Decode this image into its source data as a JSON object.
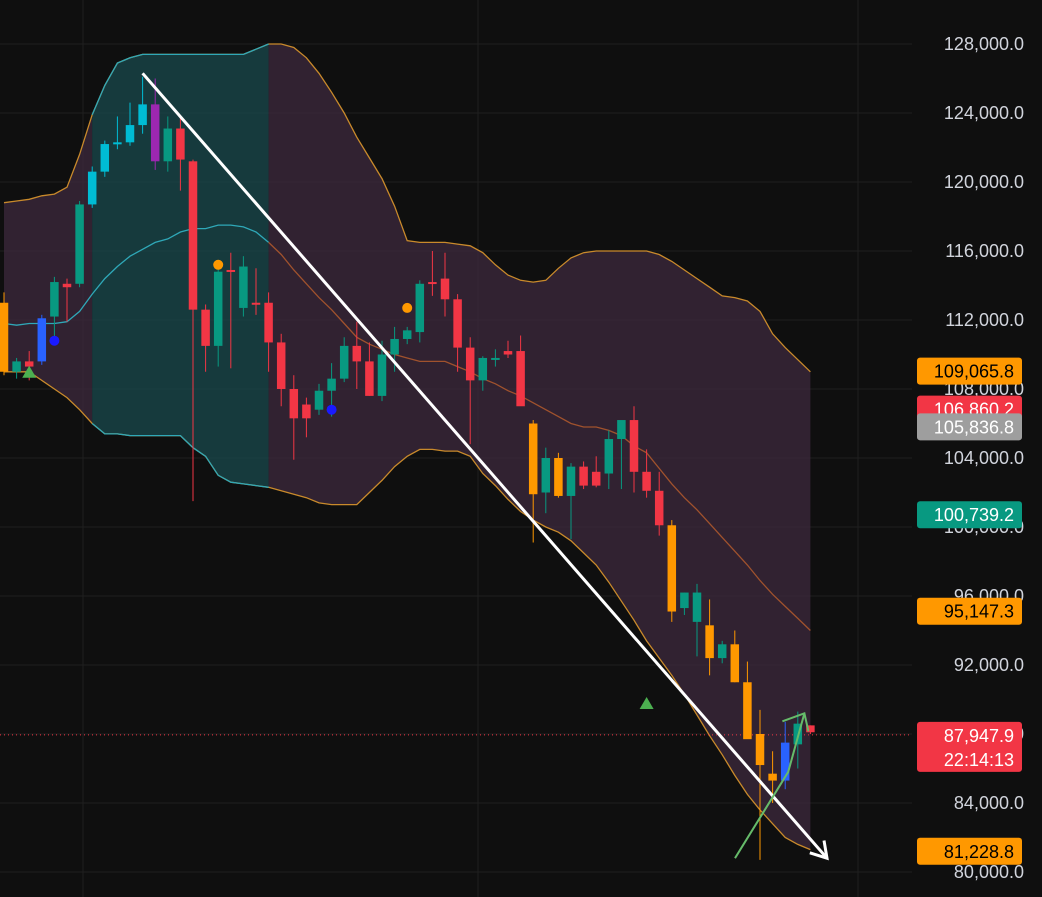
{
  "chart_data": {
    "type": "candlestick",
    "title": "",
    "xlabel": "",
    "ylabel": "",
    "ylim": [
      79500,
      130500
    ],
    "grid": true,
    "y_ticks": [
      {
        "value": 128000,
        "label": "128,000.0"
      },
      {
        "value": 124000,
        "label": "124,000.0"
      },
      {
        "value": 120000,
        "label": "120,000.0"
      },
      {
        "value": 116000,
        "label": "116,000.0"
      },
      {
        "value": 112000,
        "label": "112,000.0"
      },
      {
        "value": 108000,
        "label": "108,000.0"
      },
      {
        "value": 104000,
        "label": "104,000.0"
      },
      {
        "value": 100000,
        "label": "100,000.0"
      },
      {
        "value": 96000,
        "label": "96,000.0"
      },
      {
        "value": 92000,
        "label": "92,000.0"
      },
      {
        "value": 88000,
        "label": "88,000.0"
      },
      {
        "value": 84000,
        "label": "84,000.0"
      },
      {
        "value": 80000,
        "label": "80,000.0"
      }
    ],
    "candles": [
      {
        "o": 113000,
        "h": 113600,
        "l": 108800,
        "c": 109000,
        "color": "#ff9800"
      },
      {
        "o": 109000,
        "h": 109800,
        "l": 108600,
        "c": 109600,
        "color": "#089981"
      },
      {
        "o": 109600,
        "h": 110200,
        "l": 108500,
        "c": 109300,
        "color": "#f23645"
      },
      {
        "o": 109600,
        "h": 112300,
        "l": 109400,
        "c": 112100,
        "color": "#2962ff"
      },
      {
        "o": 112200,
        "h": 114500,
        "l": 111000,
        "c": 114200,
        "color": "#089981"
      },
      {
        "o": 113900,
        "h": 114400,
        "l": 111900,
        "c": 114100,
        "color": "#f23645"
      },
      {
        "o": 114100,
        "h": 118900,
        "l": 113900,
        "c": 118700,
        "color": "#089981"
      },
      {
        "o": 118700,
        "h": 120900,
        "l": 118500,
        "c": 120600,
        "color": "#00bcd4"
      },
      {
        "o": 120600,
        "h": 122400,
        "l": 120300,
        "c": 122200,
        "color": "#00bcd4"
      },
      {
        "o": 122200,
        "h": 123800,
        "l": 121900,
        "c": 122300,
        "color": "#00bcd4"
      },
      {
        "o": 122300,
        "h": 124600,
        "l": 122100,
        "c": 123300,
        "color": "#00bcd4"
      },
      {
        "o": 123300,
        "h": 126100,
        "l": 122800,
        "c": 124500,
        "color": "#00bcd4"
      },
      {
        "o": 124500,
        "h": 126000,
        "l": 120700,
        "c": 121200,
        "color": "#9c27b0"
      },
      {
        "o": 121200,
        "h": 123800,
        "l": 120600,
        "c": 123100,
        "color": "#089981"
      },
      {
        "o": 123100,
        "h": 123700,
        "l": 119500,
        "c": 121300,
        "color": "#f23645"
      },
      {
        "o": 121200,
        "h": 121300,
        "l": 101500,
        "c": 112600,
        "color": "#f23645"
      },
      {
        "o": 112600,
        "h": 112900,
        "l": 109000,
        "c": 110500,
        "color": "#f23645"
      },
      {
        "o": 110500,
        "h": 115400,
        "l": 109300,
        "c": 114800,
        "color": "#089981"
      },
      {
        "o": 114800,
        "h": 115900,
        "l": 109200,
        "c": 114900,
        "color": "#f23645"
      },
      {
        "o": 112700,
        "h": 115700,
        "l": 112200,
        "c": 115100,
        "color": "#089981"
      },
      {
        "o": 113000,
        "h": 115000,
        "l": 112300,
        "c": 113000,
        "color": "#f23645"
      },
      {
        "o": 113000,
        "h": 113600,
        "l": 109000,
        "c": 110700,
        "color": "#f23645"
      },
      {
        "o": 110700,
        "h": 111200,
        "l": 107000,
        "c": 108000,
        "color": "#f23645"
      },
      {
        "o": 108000,
        "h": 108800,
        "l": 103900,
        "c": 106300,
        "color": "#f23645"
      },
      {
        "o": 106300,
        "h": 107500,
        "l": 105200,
        "c": 107100,
        "color": "#f23645"
      },
      {
        "o": 106800,
        "h": 108300,
        "l": 106500,
        "c": 107900,
        "color": "#089981"
      },
      {
        "o": 107900,
        "h": 109500,
        "l": 106400,
        "c": 108600,
        "color": "#089981"
      },
      {
        "o": 108600,
        "h": 111000,
        "l": 108400,
        "c": 110500,
        "color": "#089981"
      },
      {
        "o": 110500,
        "h": 111900,
        "l": 108000,
        "c": 109600,
        "color": "#f23645"
      },
      {
        "o": 109600,
        "h": 110700,
        "l": 107600,
        "c": 107600,
        "color": "#f23645"
      },
      {
        "o": 107600,
        "h": 110800,
        "l": 107300,
        "c": 110000,
        "color": "#089981"
      },
      {
        "o": 110000,
        "h": 111600,
        "l": 109000,
        "c": 110900,
        "color": "#089981"
      },
      {
        "o": 110900,
        "h": 111600,
        "l": 110600,
        "c": 111400,
        "color": "#089981"
      },
      {
        "o": 111300,
        "h": 114300,
        "l": 110700,
        "c": 114100,
        "color": "#089981"
      },
      {
        "o": 114100,
        "h": 116000,
        "l": 113400,
        "c": 114200,
        "color": "#f23645"
      },
      {
        "o": 114400,
        "h": 115900,
        "l": 112200,
        "c": 113200,
        "color": "#f23645"
      },
      {
        "o": 113200,
        "h": 113500,
        "l": 109000,
        "c": 110400,
        "color": "#f23645"
      },
      {
        "o": 110400,
        "h": 111000,
        "l": 104800,
        "c": 108500,
        "color": "#f23645"
      },
      {
        "o": 108500,
        "h": 109900,
        "l": 107900,
        "c": 109800,
        "color": "#089981"
      },
      {
        "o": 109800,
        "h": 110300,
        "l": 109300,
        "c": 109800,
        "color": "#089981"
      },
      {
        "o": 110000,
        "h": 110800,
        "l": 109800,
        "c": 110200,
        "color": "#f23645"
      },
      {
        "o": 110200,
        "h": 111100,
        "l": 107200,
        "c": 107000,
        "color": "#f23645"
      },
      {
        "o": 106000,
        "h": 106200,
        "l": 99100,
        "c": 101900,
        "color": "#ff9800"
      },
      {
        "o": 102000,
        "h": 104600,
        "l": 100800,
        "c": 104000,
        "color": "#089981"
      },
      {
        "o": 104000,
        "h": 104300,
        "l": 101700,
        "c": 101800,
        "color": "#ff9800"
      },
      {
        "o": 101800,
        "h": 103700,
        "l": 99300,
        "c": 103500,
        "color": "#089981"
      },
      {
        "o": 103500,
        "h": 103800,
        "l": 102200,
        "c": 102400,
        "color": "#f23645"
      },
      {
        "o": 102400,
        "h": 104100,
        "l": 102300,
        "c": 103200,
        "color": "#f23645"
      },
      {
        "o": 103100,
        "h": 105600,
        "l": 102200,
        "c": 105100,
        "color": "#089981"
      },
      {
        "o": 105100,
        "h": 105800,
        "l": 102200,
        "c": 106200,
        "color": "#089981"
      },
      {
        "o": 106200,
        "h": 107000,
        "l": 102000,
        "c": 103200,
        "color": "#f23645"
      },
      {
        "o": 103200,
        "h": 104500,
        "l": 101700,
        "c": 102100,
        "color": "#f23645"
      },
      {
        "o": 102100,
        "h": 103200,
        "l": 99500,
        "c": 100100,
        "color": "#f23645"
      },
      {
        "o": 100100,
        "h": 100400,
        "l": 94500,
        "c": 95100,
        "color": "#ff9800"
      },
      {
        "o": 95300,
        "h": 96200,
        "l": 94900,
        "c": 96200,
        "color": "#089981"
      },
      {
        "o": 96200,
        "h": 96700,
        "l": 92500,
        "c": 94500,
        "color": "#089981"
      },
      {
        "o": 94300,
        "h": 95800,
        "l": 91400,
        "c": 92400,
        "color": "#ff9800"
      },
      {
        "o": 92400,
        "h": 93400,
        "l": 92100,
        "c": 93200,
        "color": "#089981"
      },
      {
        "o": 93200,
        "h": 94000,
        "l": 91000,
        "c": 91000,
        "color": "#ff9800"
      },
      {
        "o": 91000,
        "h": 92200,
        "l": 88000,
        "c": 87700,
        "color": "#ff9800"
      },
      {
        "o": 88000,
        "h": 89400,
        "l": 80700,
        "c": 86200,
        "color": "#ff9800"
      },
      {
        "o": 85700,
        "h": 87000,
        "l": 84000,
        "c": 85300,
        "color": "#ff9800"
      },
      {
        "o": 85300,
        "h": 88700,
        "l": 84800,
        "c": 87500,
        "color": "#2962ff"
      },
      {
        "o": 87400,
        "h": 89300,
        "l": 86000,
        "c": 88600,
        "color": "#089981"
      },
      {
        "o": 88500,
        "h": 88500,
        "l": 88000,
        "c": 88100,
        "color": "#f23645"
      }
    ],
    "bands": {
      "upper": [
        118800,
        118900,
        119000,
        119200,
        119300,
        119700,
        121600,
        123900,
        125600,
        126900,
        127200,
        127400,
        127400,
        127400,
        127400,
        127400,
        127400,
        127400,
        127400,
        127400,
        127700,
        128000,
        128000,
        127800,
        127200,
        126300,
        125200,
        124000,
        122600,
        121400,
        120200,
        118600,
        116600,
        116500,
        116500,
        116500,
        116400,
        116300,
        115900,
        115200,
        114600,
        114300,
        114200,
        114300,
        115000,
        115600,
        115900,
        116000,
        116000,
        116000,
        116000,
        116000,
        115800,
        115400,
        114900,
        114400,
        113900,
        113400,
        113300,
        113100,
        112500,
        111200,
        110400,
        109700,
        109000
      ],
      "middle": [
        111800,
        111700,
        111800,
        111800,
        111800,
        111900,
        112500,
        113500,
        114400,
        115100,
        115700,
        116100,
        116500,
        116700,
        117100,
        117300,
        117300,
        117500,
        117500,
        117400,
        117100,
        116500,
        115800,
        114900,
        114100,
        113300,
        112600,
        111800,
        111000,
        110600,
        110300,
        110000,
        109800,
        109600,
        109600,
        109600,
        109300,
        109000,
        108600,
        108300,
        107900,
        107600,
        107200,
        106800,
        106400,
        106000,
        105800,
        105800,
        105600,
        105300,
        104700,
        104300,
        103400,
        102500,
        101700,
        101000,
        100200,
        99400,
        98600,
        97800,
        96900,
        96100,
        95400,
        94700,
        94000
      ],
      "lower": [
        109000,
        109000,
        109000,
        108500,
        108000,
        107500,
        106800,
        106000,
        105400,
        105400,
        105300,
        105300,
        105300,
        105300,
        105300,
        104600,
        104100,
        103000,
        102600,
        102500,
        102400,
        102300,
        102100,
        101900,
        101700,
        101400,
        101300,
        101300,
        101300,
        102000,
        102700,
        103500,
        104100,
        104500,
        104500,
        104400,
        104400,
        104100,
        103100,
        102400,
        101600,
        100900,
        100400,
        100000,
        99700,
        99200,
        98500,
        97800,
        96800,
        95700,
        94600,
        93400,
        92400,
        91400,
        90300,
        89100,
        87900,
        86800,
        85600,
        84500,
        83600,
        82800,
        82000,
        81600,
        81300
      ],
      "middle_line_color": "#2fa8b8",
      "band_color": "#a0522d",
      "upper_line_color": "#c98a2b",
      "fill_teal": "#1a4a4d",
      "fill_purple": "#3d2a3d"
    },
    "markers": [
      {
        "index": 2,
        "type": "triangle-up",
        "price": 109000,
        "color": "#4caf50"
      },
      {
        "index": 4,
        "type": "dot",
        "price": 110800,
        "color": "#1a1aff"
      },
      {
        "index": 17,
        "type": "dot",
        "price": 115200,
        "color": "#ff9800"
      },
      {
        "index": 26,
        "type": "dot",
        "price": 106800,
        "color": "#1a1aff"
      },
      {
        "index": 32,
        "type": "dot",
        "price": 112700,
        "color": "#ff9800"
      },
      {
        "index": 51,
        "type": "triangle-up",
        "price": 89800,
        "color": "#4caf50"
      }
    ],
    "price_badges": [
      {
        "value": 109065.8,
        "label": "109,065.8",
        "bg": "#ff9800",
        "fg": "#000000"
      },
      {
        "value": 106860.2,
        "label": "106,860.2",
        "bg": "#f23645",
        "fg": "#ffffff"
      },
      {
        "value": 105836.8,
        "label": "105,836.8",
        "bg": "#9e9e9e",
        "fg": "#ffffff"
      },
      {
        "value": 100739.2,
        "label": "100,739.2",
        "bg": "#089981",
        "fg": "#ffffff"
      },
      {
        "value": 95147.3,
        "label": "95,147.3",
        "bg": "#ff9800",
        "fg": "#000000"
      },
      {
        "value": 87947.9,
        "label": "87,947.9",
        "bg": "#f23645",
        "fg": "#ffffff",
        "countdown": "22:14:13"
      },
      {
        "value": 81228.8,
        "label": "81,228.8",
        "bg": "#ff9800",
        "fg": "#000000"
      }
    ],
    "current_price": 87947.9,
    "trendline": {
      "start": {
        "index": 11,
        "price": 126300
      },
      "end": {
        "index": 65,
        "price": 80800
      },
      "color": "#ffffff"
    },
    "projection": {
      "color": "#66bb6a"
    }
  }
}
